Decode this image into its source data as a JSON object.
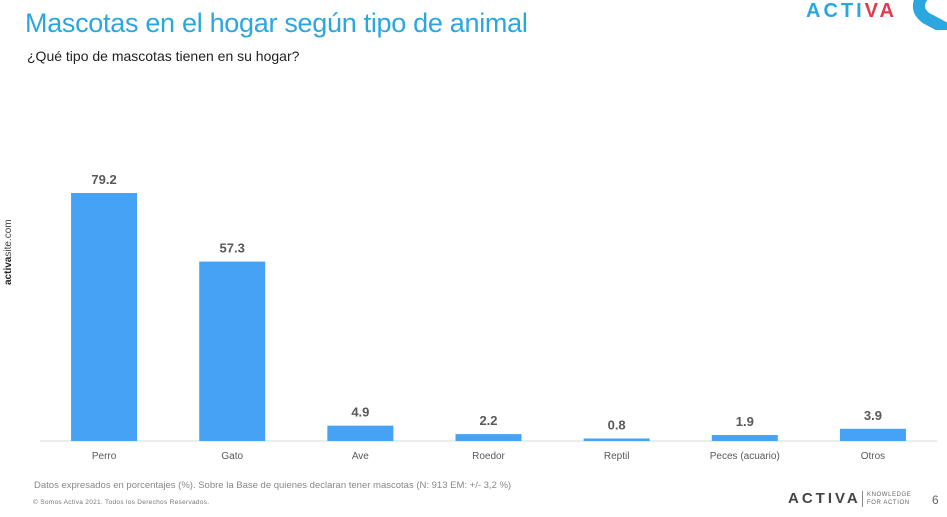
{
  "header": {
    "title": "Mascotas en el hogar según tipo de animal",
    "subtitle": "¿Qué tipo de mascotas tienen en su hogar?",
    "logo_top_part1": "ACTI",
    "logo_top_part2": "VA"
  },
  "side_text": {
    "bold": "activa",
    "rest": "site.com"
  },
  "colors": {
    "bar": "#45a2f5",
    "title": "#2aa7df",
    "label": "#595959",
    "axis": "#d9d9d9"
  },
  "chart_data": {
    "type": "bar",
    "title": "Mascotas en el hogar según tipo de animal",
    "subtitle": "¿Qué tipo de mascotas tienen en su hogar?",
    "xlabel": "",
    "ylabel": "",
    "categories": [
      "Perro",
      "Gato",
      "Ave",
      "Roedor",
      "Reptil",
      "Peces (acuario)",
      "Otros"
    ],
    "values": [
      79.2,
      57.3,
      4.9,
      2.2,
      0.8,
      1.9,
      3.9
    ],
    "value_labels": [
      "79.2",
      "57.3",
      "4.9",
      "2.2",
      "0.8",
      "1.9",
      "3.9"
    ],
    "unit": "%",
    "ylim": [
      0,
      79.2
    ],
    "grid": false,
    "legend": "none"
  },
  "footer": {
    "note": "Datos expresados en porcentajes (%). Sobre la Base de quienes declaran tener mascotas (N: 913  EM: +/- 3,2  %)",
    "copyright": "© Somos Activa 2021. Todos los Derechos Reservados.",
    "logo": "ACTIVA",
    "tagline_1": "KNOWLEDGE",
    "tagline_2": "FOR ACTION",
    "page_number": "6"
  }
}
